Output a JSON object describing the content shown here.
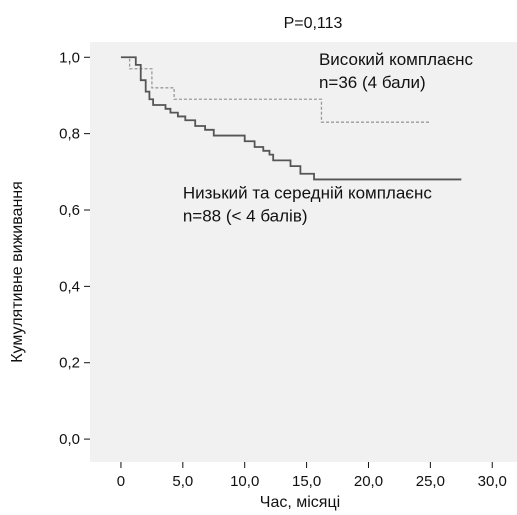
{
  "chart_data": {
    "type": "line",
    "subtype": "kaplan-meier step",
    "title": "P=0,113",
    "xlabel": "Час, місяці",
    "ylabel": "Кумулятивне виживання",
    "xlim": [
      -2.5,
      32
    ],
    "ylim": [
      -0.06,
      1.04
    ],
    "x_ticks": [
      0,
      5,
      10,
      15,
      20,
      25,
      30
    ],
    "x_tick_labels": [
      "0",
      "5,0",
      "10,0",
      "15,0",
      "20,0",
      "25,0",
      "30,0"
    ],
    "y_ticks": [
      0,
      0.2,
      0.4,
      0.6,
      0.8,
      1.0
    ],
    "y_tick_labels": [
      "0,0",
      "0,2",
      "0,4",
      "0,6",
      "0,8",
      "1,0"
    ],
    "grid": false,
    "background": "#f1f1f1",
    "series": [
      {
        "name": "Високий комплаєнс",
        "group_n": "n=36 (4 бали)",
        "style": "dashed",
        "color": "#9a9a9a",
        "steps": [
          [
            0,
            1.0
          ],
          [
            0.7,
            0.97
          ],
          [
            2.5,
            0.92
          ],
          [
            4.3,
            0.89
          ],
          [
            16.2,
            0.83
          ],
          [
            25.0,
            0.83
          ]
        ]
      },
      {
        "name": "Низький та середній комплаєнс",
        "group_n": "n=88 (< 4 балів)",
        "style": "solid",
        "color": "#555555",
        "steps": [
          [
            0,
            1.0
          ],
          [
            1.2,
            0.98
          ],
          [
            1.6,
            0.94
          ],
          [
            2.0,
            0.91
          ],
          [
            2.3,
            0.89
          ],
          [
            2.6,
            0.875
          ],
          [
            3.6,
            0.865
          ],
          [
            4.0,
            0.855
          ],
          [
            4.6,
            0.845
          ],
          [
            5.2,
            0.835
          ],
          [
            6.0,
            0.82
          ],
          [
            6.8,
            0.81
          ],
          [
            7.5,
            0.795
          ],
          [
            10.0,
            0.78
          ],
          [
            10.8,
            0.765
          ],
          [
            11.5,
            0.755
          ],
          [
            12.0,
            0.745
          ],
          [
            12.3,
            0.73
          ],
          [
            13.7,
            0.715
          ],
          [
            14.5,
            0.695
          ],
          [
            15.6,
            0.68
          ],
          [
            27.5,
            0.68
          ]
        ]
      }
    ],
    "annotations": [
      {
        "text": "Високий комплаєнс",
        "x": 16,
        "y": 0.98
      },
      {
        "text": "n=36 (4 бали)",
        "x": 16,
        "y": 0.92
      },
      {
        "text": "Низький та середній комплаєнс",
        "x": 5,
        "y": 0.63
      },
      {
        "text": "n=88 (< 4 балів)",
        "x": 5,
        "y": 0.57
      }
    ]
  }
}
